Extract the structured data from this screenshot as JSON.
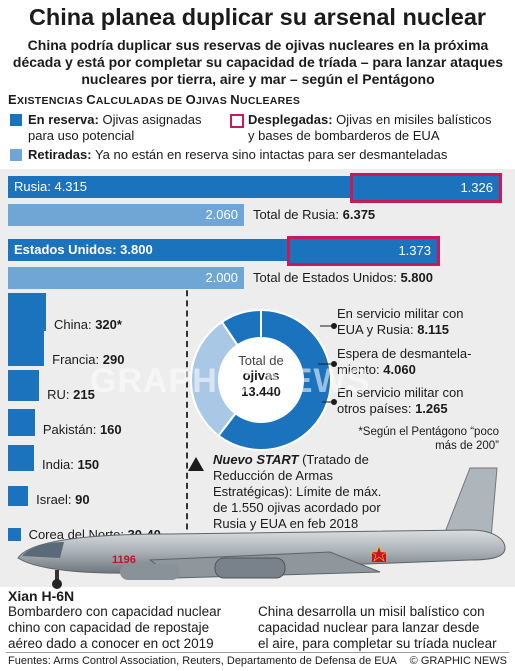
{
  "title": "China planea duplicar su arsenal nuclear",
  "subtitle": "China podría duplicar sus reservas de ojivas nucleares en la próxima década y está por completar su capacidad de tríada – para lanzar ataques nucleares por tierra, aire y mar – según el Pentágono",
  "section": {
    "first_e": "E",
    "rest_e": "XISTENCIAS ",
    "first_c": "C",
    "rest_c": "ALCULADAS DE ",
    "first_o": "O",
    "rest_o": "JIVAS ",
    "first_n": "N",
    "rest_n": "UCLEARES"
  },
  "legend": {
    "reserve_title": "En reserva:",
    "reserve_desc_1": "Ojivas asignadas",
    "reserve_desc_2": "para uso potencial",
    "deployed_title": "Desplegadas:",
    "deployed_desc_1": "Ojivas en misiles balísticos",
    "deployed_desc_2": "y bases de bombarderos de EUA",
    "retired_title": "Retiradas:",
    "retired_desc": "Ya no están en reserva sino intactas para ser desmanteladas"
  },
  "colors": {
    "reserve": "#1c73bd",
    "deployed_border": "#c8195b",
    "retired": "#6fa6d6",
    "background": "#ededed",
    "donut_light": "#a9c8e6"
  },
  "russia": {
    "reserve_label": "Rusia: 4.315",
    "deployed_label": "1.326",
    "retired_label": "2.060",
    "total_label": "Total de Rusia:",
    "total_value": "6.375"
  },
  "usa": {
    "reserve_label": "Estados Unidos: 3.800",
    "deployed_label": "1.373",
    "retired_label": "2.000",
    "total_label": "Total de Estados Unidos:",
    "total_value": "5.800"
  },
  "chart_data": [
    {
      "type": "bar",
      "categories": [
        "Rusia",
        "Estados Unidos"
      ],
      "series": [
        {
          "name": "En reserva",
          "values": [
            4315,
            3800
          ]
        },
        {
          "name": "Desplegadas",
          "values": [
            1326,
            1373
          ]
        },
        {
          "name": "Retiradas",
          "values": [
            2060,
            2000
          ]
        }
      ],
      "totals": [
        6375,
        5800
      ]
    },
    {
      "type": "bar",
      "categories": [
        "China",
        "Francia",
        "RU",
        "Pakistán",
        "India",
        "Israel",
        "Corea del Norte"
      ],
      "values": [
        320,
        290,
        215,
        160,
        150,
        90,
        35
      ],
      "labels": [
        {
          "name": "China:",
          "value": "320*"
        },
        {
          "name": "Francia:",
          "value": "290"
        },
        {
          "name": "RU:",
          "value": "215"
        },
        {
          "name": "Pakistán:",
          "value": "160"
        },
        {
          "name": "India:",
          "value": "150"
        },
        {
          "name": "Israel:",
          "value": "90"
        },
        {
          "name": "Corea del Norte:",
          "value": "30-40"
        }
      ]
    },
    {
      "type": "pie",
      "center_label_1": "Total de",
      "center_label_2": "ojivas",
      "center_value": "13.440",
      "slices": [
        {
          "label_1": "En servicio militar con",
          "label_2": "EUA y Rusia:",
          "value_text": "8.115",
          "value": 8115
        },
        {
          "label_1": "Espera de desmantela-",
          "label_2": "miento:",
          "value_text": "4.060",
          "value": 4060
        },
        {
          "label_1": "En servicio militar con",
          "label_2": "otros países:",
          "value_text": "1.265",
          "value": 1265
        }
      ]
    }
  ],
  "footnote_1": "*Según el Pentágono “poco",
  "footnote_2": "más de 200”",
  "start": {
    "title": "Nuevo START",
    "line1_rest": " (Tratado de",
    "line2": "Reducción de Armas",
    "line3": "Estratégicas): Límite de máx.",
    "line4": "de 1.550 ojivas acordado por",
    "line5": "Rusia y EUA en feb 2018"
  },
  "plane": {
    "tail_number": "1196",
    "title": "Xian H-6N",
    "desc_1": "Bombardero con capacidad nuclear",
    "desc_2": "chino con capacidad de repostaje",
    "desc_3": "aéreo dado a conocer en oct 2019"
  },
  "missile": {
    "desc_1": "China desarrolla un misil balístico con",
    "desc_2": "capacidad nuclear para lanzar desde",
    "desc_3": "el aire, para completar su tríada nuclear"
  },
  "watermark": "GRAPHIC NEWS",
  "sources": "Fuentes: Arms Control Association, Reuters, Departamento de Defensa de EUA",
  "credit": "© GRAPHIC NEWS"
}
